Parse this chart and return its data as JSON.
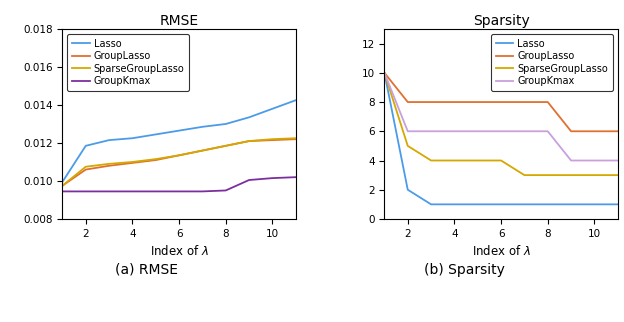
{
  "rmse": {
    "title": "RMSE",
    "xlabel": "Index of $\\lambda$",
    "xlim": [
      1,
      11
    ],
    "ylim": [
      0.008,
      0.018
    ],
    "yticks": [
      0.008,
      0.01,
      0.012,
      0.014,
      0.016,
      0.018
    ],
    "xticks": [
      2,
      4,
      6,
      8,
      10
    ],
    "x": [
      1,
      2,
      3,
      4,
      5,
      6,
      7,
      8,
      9,
      10,
      11
    ],
    "lasso": [
      0.00995,
      0.01185,
      0.01215,
      0.01225,
      0.01245,
      0.01265,
      0.01285,
      0.013,
      0.01335,
      0.0138,
      0.01425
    ],
    "group_lasso": [
      0.00975,
      0.0106,
      0.0108,
      0.01095,
      0.0111,
      0.01135,
      0.0116,
      0.01185,
      0.0121,
      0.01215,
      0.0122
    ],
    "sparse_group_lasso": [
      0.00975,
      0.01075,
      0.0109,
      0.011,
      0.01115,
      0.01135,
      0.0116,
      0.01185,
      0.0121,
      0.0122,
      0.01225
    ],
    "group_kmax": [
      0.00945,
      0.00945,
      0.00945,
      0.00945,
      0.00945,
      0.00945,
      0.00945,
      0.0095,
      0.01005,
      0.01015,
      0.0102
    ],
    "lasso_color": "#4C9BE8",
    "group_lasso_color": "#E07030",
    "sparse_group_lasso_color": "#D4A800",
    "group_kmax_color": "#7B2F9E",
    "legend_labels": [
      "Lasso",
      "GroupLasso",
      "SparseGroupLasso",
      "GroupKmax"
    ]
  },
  "sparsity": {
    "title": "Sparsity",
    "xlabel": "Index of $\\lambda$",
    "xlim": [
      1,
      11
    ],
    "ylim": [
      0,
      13
    ],
    "yticks": [
      0,
      2,
      4,
      6,
      8,
      10,
      12
    ],
    "xticks": [
      2,
      4,
      6,
      8,
      10
    ],
    "x": [
      1,
      2,
      3,
      4,
      5,
      6,
      7,
      8,
      9,
      10,
      11
    ],
    "lasso": [
      10,
      2,
      1,
      1,
      1,
      1,
      1,
      1,
      1,
      1,
      1
    ],
    "group_lasso": [
      10,
      8,
      8,
      8,
      8,
      8,
      8,
      8,
      6,
      6,
      6
    ],
    "sparse_group_lasso": [
      10,
      5,
      4,
      4,
      4,
      4,
      3,
      3,
      3,
      3,
      3
    ],
    "group_kmax": [
      10,
      6,
      6,
      6,
      6,
      6,
      6,
      6,
      4,
      4,
      4
    ],
    "lasso_color": "#4C9BE8",
    "group_lasso_color": "#E07030",
    "sparse_group_lasso_color": "#D4A800",
    "group_kmax_color": "#C9A0DC",
    "legend_labels": [
      "Lasso",
      "GroupLasso",
      "SparseGroupLasso",
      "GroupKmax"
    ]
  },
  "caption_a": "(a) RMSE",
  "caption_b": "(b) Sparsity",
  "linewidth": 1.3
}
